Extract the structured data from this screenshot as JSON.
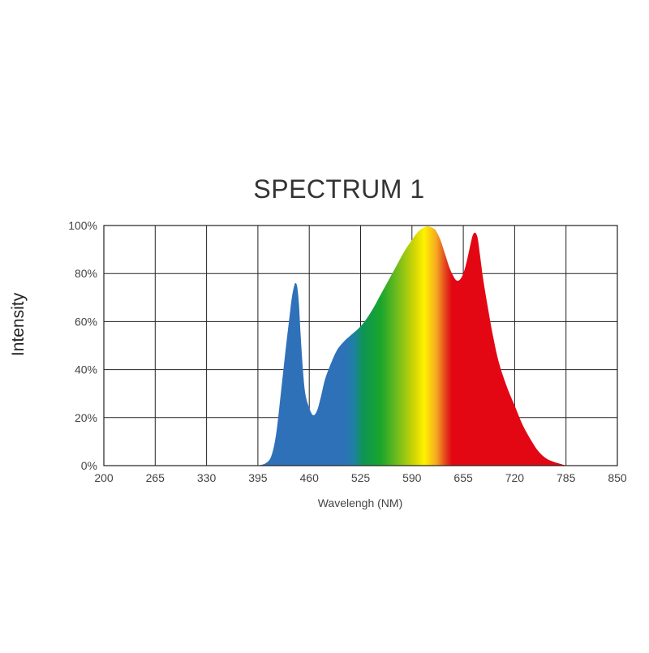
{
  "chart_data": {
    "type": "area",
    "title": "SPECTRUM 1",
    "xlabel": "Wavelengh (NM)",
    "ylabel": "Intensity",
    "xlim": [
      200,
      850
    ],
    "ylim": [
      0,
      100
    ],
    "x_ticks": [
      200,
      265,
      330,
      395,
      460,
      525,
      590,
      655,
      720,
      785,
      850
    ],
    "y_ticks": [
      0,
      20,
      40,
      60,
      80,
      100
    ],
    "y_tick_labels": [
      "0%",
      "20%",
      "40%",
      "60%",
      "80%",
      "100%"
    ],
    "grid": true,
    "series": [
      {
        "x": [
          395,
          405,
          412,
          418,
          424,
          430,
          435,
          438,
          441,
          443,
          445,
          447,
          449,
          452,
          455,
          460,
          465,
          470,
          475,
          480,
          488,
          495,
          502,
          508,
          515,
          522,
          530,
          540,
          550,
          560,
          570,
          580,
          590,
          598,
          604,
          608,
          612,
          616,
          620,
          626,
          632,
          638,
          644,
          648,
          652,
          656,
          660,
          664,
          667,
          670,
          673,
          676,
          680,
          686,
          692,
          700,
          710,
          720,
          730,
          740,
          750,
          760,
          770,
          780,
          785
        ],
        "y": [
          0,
          1,
          4,
          13,
          30,
          48,
          62,
          70,
          75,
          76,
          74,
          67,
          55,
          40,
          30,
          24,
          21,
          23,
          29,
          36,
          43,
          48,
          51,
          53,
          55,
          57,
          60,
          65,
          71,
          77,
          83,
          89,
          94,
          97.5,
          99,
          99.5,
          99.5,
          99,
          98,
          94,
          88,
          82,
          78,
          77,
          78,
          81,
          86,
          92,
          96,
          97,
          95,
          88,
          78,
          66,
          55,
          43,
          33,
          25,
          17,
          11,
          6,
          3,
          1.5,
          0.5,
          0
        ]
      }
    ],
    "spectrum_colors": [
      "#2e71b8",
      "#2e71b8",
      "#2e71b8",
      "#1f7fa5",
      "#0e9455",
      "#1aa62b",
      "#6dbb1e",
      "#d4d705",
      "#fff200",
      "#f5a623",
      "#e2401c",
      "#e30613",
      "#e30613"
    ]
  }
}
